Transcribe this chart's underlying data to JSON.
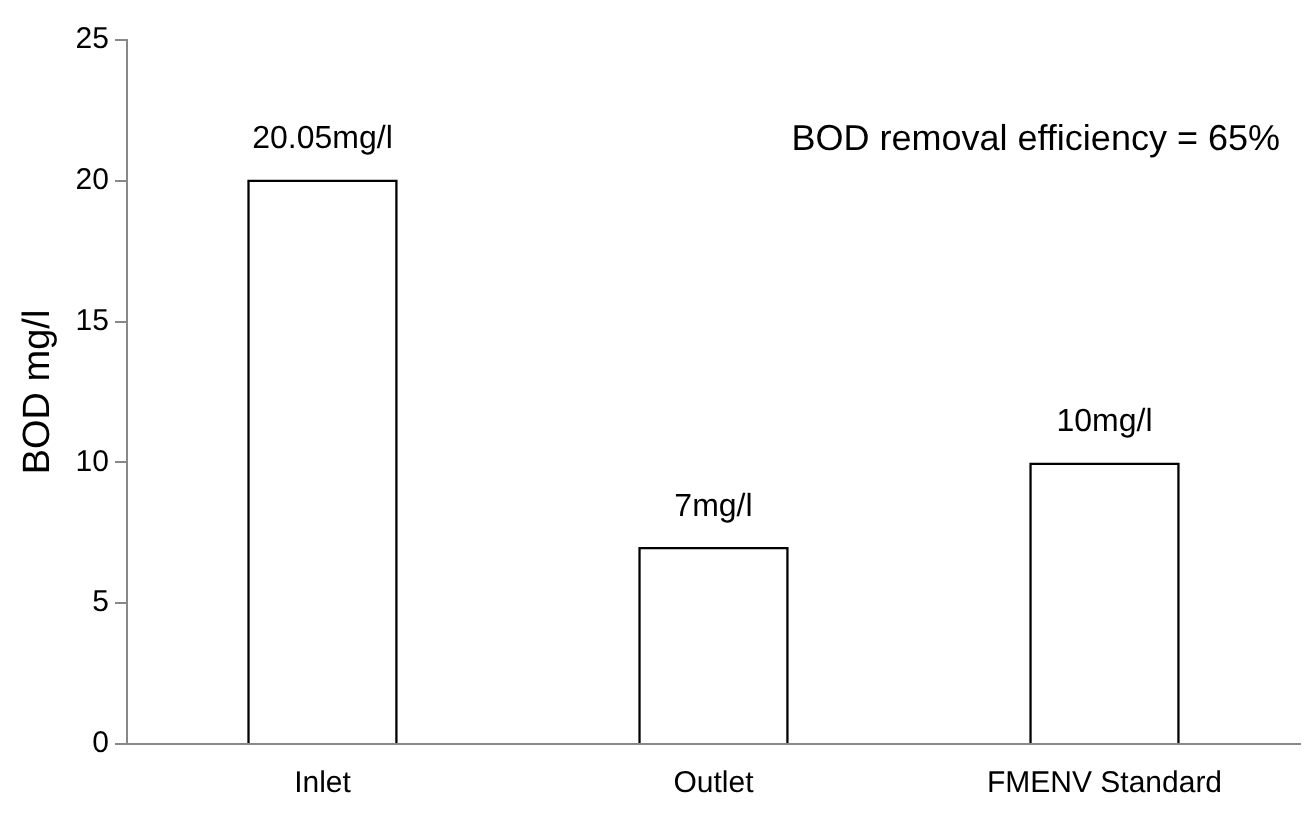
{
  "chart_data": {
    "type": "bar",
    "ylabel": "BOD mg/l",
    "categories": [
      "Inlet",
      "Outlet",
      "FMENV Standard"
    ],
    "values": [
      20.05,
      7,
      10
    ],
    "value_labels": [
      "20.05mg/l",
      "7mg/l",
      "10mg/l"
    ],
    "color": "#ffffff",
    "ylim": [
      0,
      25
    ],
    "yticks": [
      0,
      5,
      10,
      15,
      20,
      25
    ],
    "grid": false,
    "annotations": [
      "BOD removal efficiency = 65%"
    ]
  }
}
